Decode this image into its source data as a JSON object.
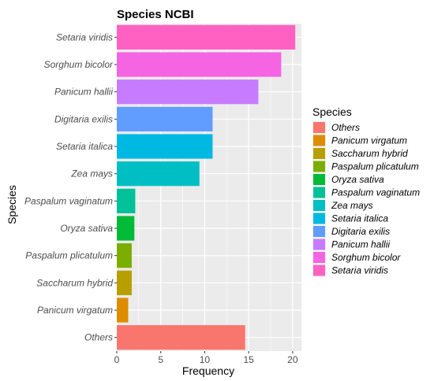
{
  "chart_data": {
    "type": "bar",
    "orientation": "horizontal",
    "title": "Species NCBI",
    "xlabel": "Frequency",
    "ylabel": "Species",
    "xlim": [
      0,
      21
    ],
    "x_ticks": [
      "0",
      "5",
      "10",
      "15",
      "20"
    ],
    "grid": true,
    "categories": [
      "Setaria viridis",
      "Sorghum bicolor",
      "Panicum hallii",
      "Digitaria exilis",
      "Setaria italica",
      "Zea mays",
      "Paspalum vaginatum",
      "Oryza sativa",
      "Paspalum plicatulum",
      "Saccharum hybrid",
      "Panicum virgatum",
      "Others"
    ],
    "values": [
      20.3,
      18.7,
      16.1,
      10.9,
      10.9,
      9.4,
      2.1,
      2.0,
      1.7,
      1.7,
      1.3,
      14.6
    ],
    "colors": [
      "#FF61C3",
      "#F564E3",
      "#C77CFF",
      "#619CFF",
      "#00B9E3",
      "#00BFC4",
      "#00C19A",
      "#00BA38",
      "#7CAE00",
      "#B79F00",
      "#DE8C00",
      "#F8766D"
    ],
    "legend": {
      "title": "Species",
      "position": "right",
      "entries": [
        {
          "label": "Others",
          "color": "#F8766D"
        },
        {
          "label": "Panicum virgatum",
          "color": "#DE8C00"
        },
        {
          "label": "Saccharum hybrid",
          "color": "#B79F00"
        },
        {
          "label": "Paspalum plicatulum",
          "color": "#7CAE00"
        },
        {
          "label": "Oryza sativa",
          "color": "#00BA38"
        },
        {
          "label": "Paspalum vaginatum",
          "color": "#00C19A"
        },
        {
          "label": "Zea mays",
          "color": "#00BFC4"
        },
        {
          "label": "Setaria italica",
          "color": "#00B9E3"
        },
        {
          "label": "Digitaria exilis",
          "color": "#619CFF"
        },
        {
          "label": "Panicum hallii",
          "color": "#C77CFF"
        },
        {
          "label": "Sorghum bicolor",
          "color": "#F564E3"
        },
        {
          "label": "Setaria viridis",
          "color": "#FF61C3"
        }
      ]
    }
  }
}
